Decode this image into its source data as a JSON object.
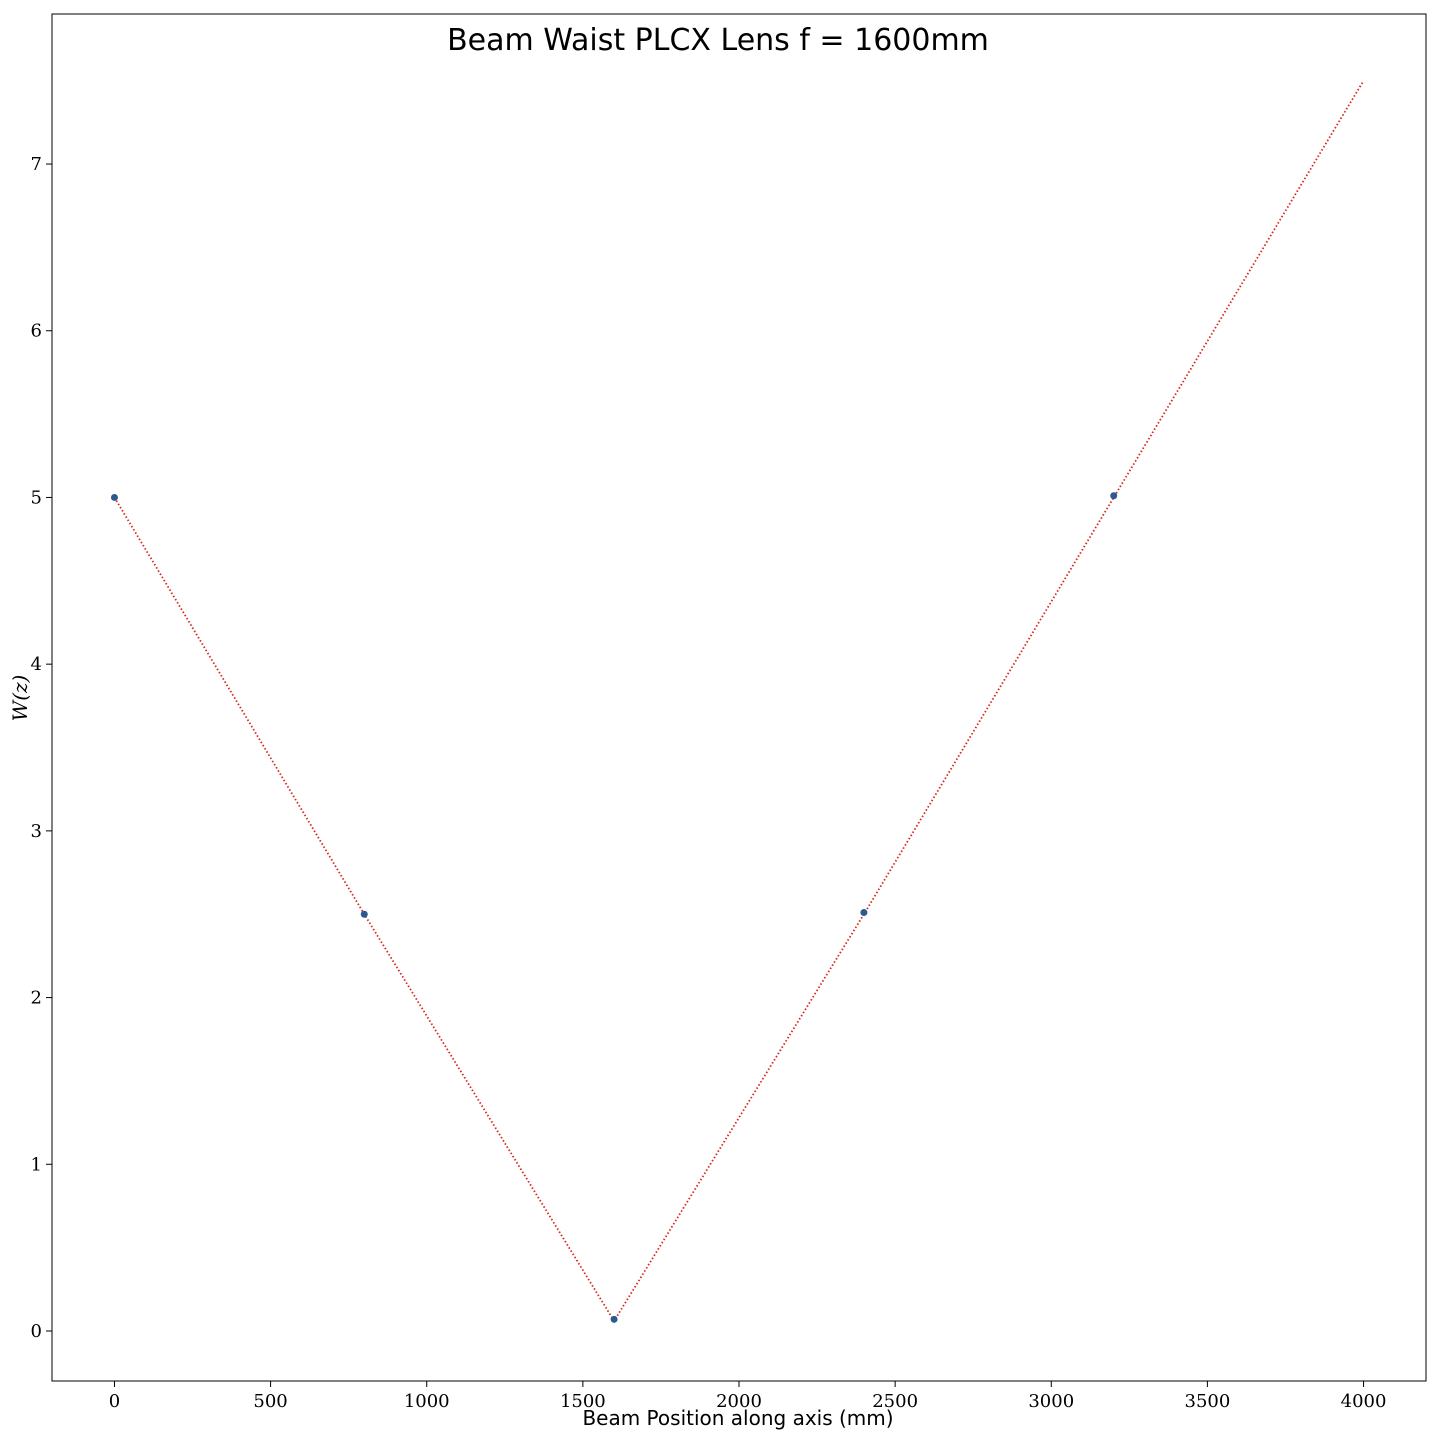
{
  "chart_data": {
    "type": "line",
    "title": "Beam Waist PLCX Lens f = 1600mm",
    "xlabel": "Beam Position along axis (mm)",
    "ylabel": "W(z)",
    "xlim": [
      -200,
      4200
    ],
    "ylim": [
      -0.3,
      7.9
    ],
    "xticks": [
      0,
      500,
      1000,
      1500,
      2000,
      2500,
      3000,
      3500,
      4000
    ],
    "yticks": [
      0,
      1,
      2,
      3,
      4,
      5,
      6,
      7
    ],
    "grid": false,
    "series": [
      {
        "style": "dotted-line",
        "color": "#d62718",
        "x": [
          0,
          800,
          1600,
          2400,
          3200,
          4000
        ],
        "y": [
          5.0,
          2.5,
          0.06,
          2.5,
          5.0,
          7.5
        ]
      },
      {
        "style": "scatter",
        "color": "#2b5a92",
        "x": [
          0,
          800,
          1600,
          2400,
          3200
        ],
        "y": [
          5.0,
          2.5,
          0.07,
          2.51,
          5.01
        ]
      }
    ]
  }
}
